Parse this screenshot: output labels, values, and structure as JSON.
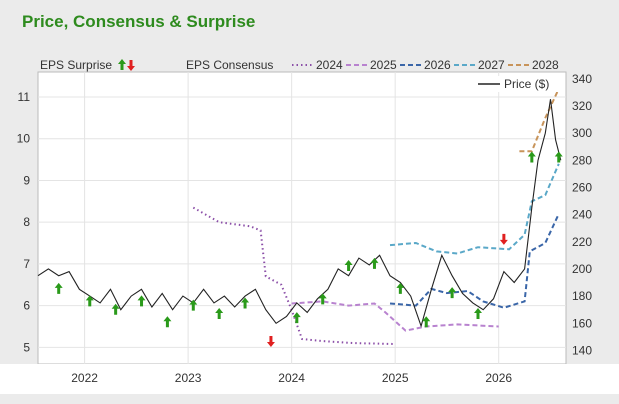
{
  "title": "Price, Consensus & Surprise",
  "chart_data": {
    "type": "line",
    "left_axis": {
      "ticks": [
        5,
        6,
        7,
        8,
        9,
        10,
        11
      ],
      "range": [
        4.6,
        11.6
      ]
    },
    "right_axis": {
      "ticks": [
        140,
        160,
        180,
        200,
        220,
        240,
        260,
        280,
        300,
        320,
        340
      ],
      "range": [
        130,
        345
      ]
    },
    "x_axis": {
      "ticks": [
        "2022",
        "2023",
        "2024",
        "2025",
        "2026"
      ],
      "range": [
        2021.55,
        2026.65
      ]
    },
    "legend": {
      "surprise_label": "EPS Surprise",
      "consensus_label": "EPS Consensus",
      "price_label": "Price ($)"
    },
    "consensus_series": [
      {
        "name": "2024",
        "color": "#8b4fa8",
        "dash": "dot",
        "points": [
          [
            2023.05,
            8.35
          ],
          [
            2023.3,
            8.0
          ],
          [
            2023.6,
            7.9
          ],
          [
            2023.7,
            7.8
          ],
          [
            2023.75,
            6.7
          ],
          [
            2023.9,
            6.5
          ],
          [
            2024.0,
            5.9
          ],
          [
            2024.1,
            5.2
          ],
          [
            2024.3,
            5.15
          ],
          [
            2024.6,
            5.1
          ],
          [
            2025.0,
            5.08
          ]
        ]
      },
      {
        "name": "2025",
        "color": "#b882cf",
        "dash": "dash",
        "points": [
          [
            2024.0,
            6.05
          ],
          [
            2024.3,
            6.1
          ],
          [
            2024.55,
            6.0
          ],
          [
            2024.8,
            6.05
          ],
          [
            2024.9,
            5.85
          ],
          [
            2025.1,
            5.4
          ],
          [
            2025.3,
            5.5
          ],
          [
            2025.6,
            5.55
          ],
          [
            2026.0,
            5.5
          ]
        ]
      },
      {
        "name": "2026",
        "color": "#3a66a8",
        "dash": "dash",
        "points": [
          [
            2024.95,
            6.05
          ],
          [
            2025.2,
            6.0
          ],
          [
            2025.35,
            6.4
          ],
          [
            2025.5,
            6.3
          ],
          [
            2025.7,
            6.35
          ],
          [
            2025.85,
            6.1
          ],
          [
            2026.05,
            5.95
          ],
          [
            2026.25,
            6.1
          ],
          [
            2026.3,
            7.3
          ],
          [
            2026.45,
            7.5
          ],
          [
            2026.58,
            8.2
          ]
        ]
      },
      {
        "name": "2027",
        "color": "#5aa8c8",
        "dash": "dash",
        "points": [
          [
            2024.95,
            7.45
          ],
          [
            2025.2,
            7.5
          ],
          [
            2025.4,
            7.3
          ],
          [
            2025.6,
            7.25
          ],
          [
            2025.8,
            7.4
          ],
          [
            2026.1,
            7.35
          ],
          [
            2026.25,
            7.7
          ],
          [
            2026.32,
            8.5
          ],
          [
            2026.45,
            8.65
          ],
          [
            2026.58,
            9.4
          ]
        ]
      },
      {
        "name": "2028",
        "color": "#c8945a",
        "dash": "dash",
        "points": [
          [
            2026.2,
            9.7
          ],
          [
            2026.32,
            9.7
          ],
          [
            2026.45,
            10.5
          ],
          [
            2026.58,
            11.2
          ]
        ]
      }
    ],
    "price_series": {
      "name": "Price ($)",
      "color": "#222",
      "points": [
        [
          2021.55,
          195
        ],
        [
          2021.65,
          200
        ],
        [
          2021.75,
          195
        ],
        [
          2021.85,
          198
        ],
        [
          2021.95,
          185
        ],
        [
          2022.05,
          180
        ],
        [
          2022.15,
          175
        ],
        [
          2022.25,
          185
        ],
        [
          2022.35,
          170
        ],
        [
          2022.45,
          180
        ],
        [
          2022.55,
          185
        ],
        [
          2022.65,
          172
        ],
        [
          2022.75,
          182
        ],
        [
          2022.85,
          170
        ],
        [
          2022.95,
          180
        ],
        [
          2023.05,
          175
        ],
        [
          2023.15,
          185
        ],
        [
          2023.25,
          175
        ],
        [
          2023.35,
          180
        ],
        [
          2023.45,
          172
        ],
        [
          2023.55,
          180
        ],
        [
          2023.65,
          185
        ],
        [
          2023.75,
          170
        ],
        [
          2023.85,
          160
        ],
        [
          2023.95,
          165
        ],
        [
          2024.05,
          175
        ],
        [
          2024.15,
          168
        ],
        [
          2024.25,
          178
        ],
        [
          2024.35,
          185
        ],
        [
          2024.45,
          200
        ],
        [
          2024.55,
          195
        ],
        [
          2024.65,
          208
        ],
        [
          2024.75,
          203
        ],
        [
          2024.85,
          210
        ],
        [
          2024.95,
          195
        ],
        [
          2025.05,
          190
        ],
        [
          2025.15,
          180
        ],
        [
          2025.25,
          158
        ],
        [
          2025.35,
          185
        ],
        [
          2025.45,
          210
        ],
        [
          2025.55,
          195
        ],
        [
          2025.65,
          182
        ],
        [
          2025.75,
          175
        ],
        [
          2025.85,
          170
        ],
        [
          2025.95,
          178
        ],
        [
          2026.05,
          198
        ],
        [
          2026.15,
          190
        ],
        [
          2026.25,
          200
        ],
        [
          2026.32,
          245
        ],
        [
          2026.38,
          280
        ],
        [
          2026.45,
          300
        ],
        [
          2026.5,
          325
        ],
        [
          2026.55,
          295
        ],
        [
          2026.6,
          280
        ]
      ]
    },
    "surprises": [
      {
        "x": 2021.75,
        "y": 6.4,
        "dir": "up"
      },
      {
        "x": 2022.05,
        "y": 6.1,
        "dir": "up"
      },
      {
        "x": 2022.3,
        "y": 5.9,
        "dir": "up"
      },
      {
        "x": 2022.55,
        "y": 6.1,
        "dir": "up"
      },
      {
        "x": 2022.8,
        "y": 5.6,
        "dir": "up"
      },
      {
        "x": 2023.05,
        "y": 6.0,
        "dir": "up"
      },
      {
        "x": 2023.3,
        "y": 5.8,
        "dir": "up"
      },
      {
        "x": 2023.55,
        "y": 6.05,
        "dir": "up"
      },
      {
        "x": 2023.8,
        "y": 5.15,
        "dir": "down"
      },
      {
        "x": 2024.05,
        "y": 5.7,
        "dir": "up"
      },
      {
        "x": 2024.3,
        "y": 6.15,
        "dir": "up"
      },
      {
        "x": 2024.55,
        "y": 6.95,
        "dir": "up"
      },
      {
        "x": 2024.8,
        "y": 7.0,
        "dir": "up"
      },
      {
        "x": 2025.05,
        "y": 6.4,
        "dir": "up"
      },
      {
        "x": 2025.3,
        "y": 5.6,
        "dir": "up"
      },
      {
        "x": 2025.55,
        "y": 6.3,
        "dir": "up"
      },
      {
        "x": 2025.8,
        "y": 5.8,
        "dir": "up"
      },
      {
        "x": 2026.05,
        "y": 7.6,
        "dir": "down"
      },
      {
        "x": 2026.32,
        "y": 9.55,
        "dir": "up"
      },
      {
        "x": 2026.58,
        "y": 9.55,
        "dir": "up"
      }
    ],
    "grid": true
  },
  "colors": {
    "up": "#2a9a1a",
    "down": "#e02020",
    "title": "#2e8b1e"
  }
}
